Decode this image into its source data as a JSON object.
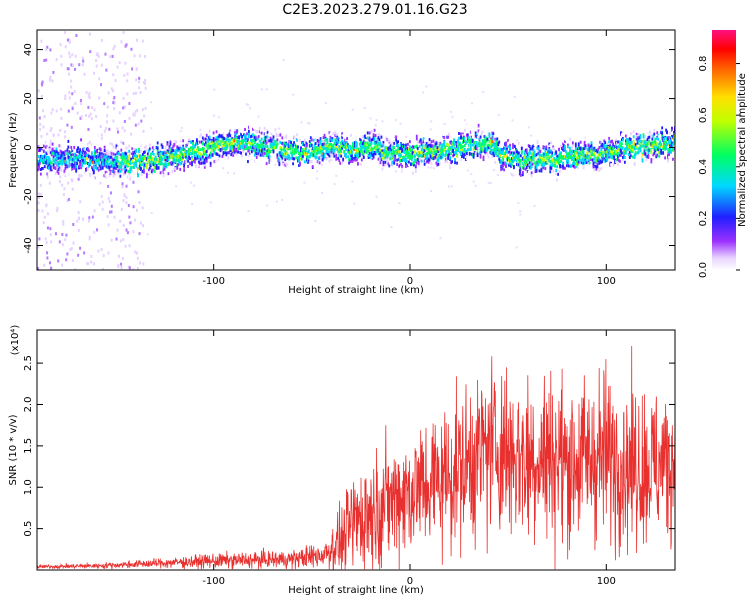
{
  "title": "C2E3.2023.279.01.16.G23",
  "chart_data": [
    {
      "type": "heatmap",
      "xlabel": "Height of straight line (km)",
      "ylabel": "Frequency (Hz)",
      "xlim": [
        -190,
        135
      ],
      "ylim": [
        -50,
        48
      ],
      "xticks": [
        -100,
        0,
        100
      ],
      "yticks": [
        -40,
        -20,
        0,
        20,
        40
      ],
      "colorbar": {
        "label": "Normalized spectral amplitude",
        "ticks": [
          0.0,
          0.2,
          0.4,
          0.6,
          0.8
        ],
        "range": [
          0.0,
          0.93
        ]
      },
      "center_track": {
        "x": [
          -190,
          -170,
          -150,
          -130,
          -110,
          -95,
          -80,
          -65,
          -50,
          -40,
          -30,
          -20,
          -10,
          0,
          10,
          20,
          30,
          40,
          45,
          55,
          65,
          75,
          85,
          95,
          110,
          125,
          135
        ],
        "y": [
          -6,
          -4,
          -6,
          -5,
          -2,
          1,
          2,
          -1,
          -2,
          0,
          -1,
          0,
          -2,
          -3,
          -2,
          -1,
          1,
          2,
          -2,
          -5,
          -4,
          -5,
          -3,
          -3,
          0,
          1,
          2
        ]
      }
    },
    {
      "type": "line",
      "xlabel": "Height of straight line (km)",
      "ylabel": "SNR (10 * v/v)",
      "y_multiplier": "(x10⁴)",
      "xlim": [
        -190,
        135
      ],
      "ylim": [
        0,
        2.9
      ],
      "xticks": [
        -100,
        0,
        100
      ],
      "yticks": [
        0.5,
        1.0,
        1.5,
        2.0,
        2.5
      ],
      "series": [
        {
          "color": "#e8312f",
          "envelope": {
            "x": [
              -190,
              -160,
              -140,
              -120,
              -100,
              -80,
              -60,
              -45,
              -35,
              -28,
              -20,
              -10,
              0,
              10,
              20,
              30,
              40,
              50,
              60,
              70,
              80,
              90,
              100,
              110,
              120,
              135
            ],
            "mean": [
              0.04,
              0.05,
              0.07,
              0.09,
              0.11,
              0.12,
              0.13,
              0.18,
              0.35,
              0.6,
              0.7,
              0.85,
              0.95,
              1.05,
              1.15,
              1.3,
              1.5,
              1.45,
              1.35,
              1.4,
              1.3,
              1.35,
              1.4,
              1.3,
              1.25,
              1.3
            ],
            "spread": [
              0.02,
              0.03,
              0.04,
              0.06,
              0.08,
              0.09,
              0.1,
              0.15,
              0.35,
              0.6,
              0.6,
              0.65,
              0.7,
              0.75,
              0.8,
              0.85,
              0.95,
              0.95,
              0.95,
              0.95,
              0.9,
              0.9,
              0.95,
              0.9,
              0.85,
              0.85
            ]
          }
        }
      ]
    }
  ]
}
